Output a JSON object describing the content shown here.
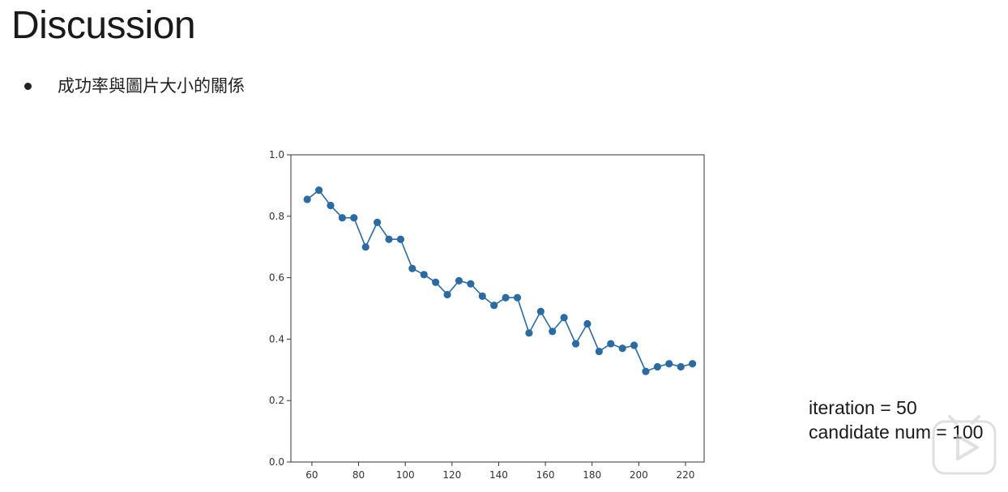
{
  "slide": {
    "title": "Discussion",
    "bullet": "成功率與圖片大小的關係"
  },
  "params": {
    "iteration": "iteration = 50",
    "candidate": "candidate num = 100"
  },
  "icons": {
    "player_logo": "play-button-logo-icon"
  },
  "colors": {
    "series": "#2a6ba3",
    "axis": "#333333"
  },
  "chart_data": {
    "type": "line",
    "markers": true,
    "title": "",
    "xlabel": "",
    "ylabel": "",
    "xlim": [
      51,
      228
    ],
    "ylim": [
      0.0,
      1.0
    ],
    "x_ticks": [
      60,
      80,
      100,
      120,
      140,
      160,
      180,
      200,
      220
    ],
    "y_ticks": [
      0.0,
      0.2,
      0.4,
      0.6,
      0.8,
      1.0
    ],
    "grid": false,
    "legend": false,
    "series": [
      {
        "x": [
          58,
          63,
          68,
          73,
          78,
          83,
          88,
          93,
          98,
          103,
          108,
          113,
          118,
          123,
          128,
          133,
          138,
          143,
          148,
          153,
          158,
          163,
          168,
          173,
          178,
          183,
          188,
          193,
          198,
          203,
          208,
          213,
          218,
          223
        ],
        "y": [
          0.855,
          0.885,
          0.835,
          0.795,
          0.795,
          0.7,
          0.78,
          0.725,
          0.725,
          0.63,
          0.61,
          0.585,
          0.545,
          0.59,
          0.58,
          0.54,
          0.51,
          0.535,
          0.535,
          0.42,
          0.49,
          0.425,
          0.47,
          0.385,
          0.45,
          0.36,
          0.385,
          0.37,
          0.38,
          0.295,
          0.31,
          0.32,
          0.31,
          0.32
        ]
      }
    ]
  }
}
